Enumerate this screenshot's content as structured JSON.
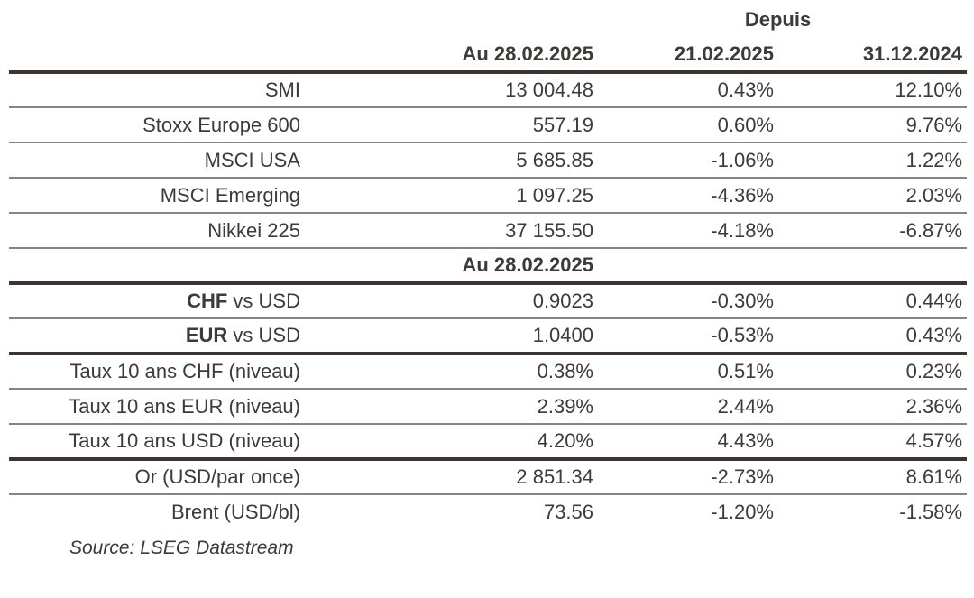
{
  "table": {
    "depuis_label": "Depuis",
    "columns": [
      "Au 28.02.2025",
      "21.02.2025",
      "31.12.2024"
    ],
    "section_header": "Au 28.02.2025",
    "rows": [
      {
        "label_bold": "",
        "label_rest": "SMI",
        "values": [
          "13 004.48",
          "0.43%",
          "12.10%"
        ]
      },
      {
        "label_bold": "",
        "label_rest": "Stoxx Europe 600",
        "values": [
          "557.19",
          "0.60%",
          "9.76%"
        ]
      },
      {
        "label_bold": "",
        "label_rest": "MSCI USA",
        "values": [
          "5 685.85",
          "-1.06%",
          "1.22%"
        ]
      },
      {
        "label_bold": "",
        "label_rest": "MSCI Emerging",
        "values": [
          "1 097.25",
          "-4.36%",
          "2.03%"
        ]
      },
      {
        "label_bold": "",
        "label_rest": "Nikkei 225",
        "values": [
          "37 155.50",
          "-4.18%",
          "-6.87%"
        ]
      },
      {
        "label_bold": "CHF",
        "label_rest": " vs USD",
        "values": [
          "0.9023",
          "-0.30%",
          "0.44%"
        ]
      },
      {
        "label_bold": "EUR",
        "label_rest": " vs USD",
        "values": [
          "1.0400",
          "-0.53%",
          "0.43%"
        ]
      },
      {
        "label_bold": "",
        "label_rest": "Taux 10 ans CHF (niveau)",
        "values": [
          "0.38%",
          "0.51%",
          "0.23%"
        ]
      },
      {
        "label_bold": "",
        "label_rest": "Taux 10 ans EUR (niveau)",
        "values": [
          "2.39%",
          "2.44%",
          "2.36%"
        ]
      },
      {
        "label_bold": "",
        "label_rest": "Taux 10 ans USD (niveau)",
        "values": [
          "4.20%",
          "4.43%",
          "4.57%"
        ]
      },
      {
        "label_bold": "",
        "label_rest": "Or (USD/par once)",
        "values": [
          "2 851.34",
          "-2.73%",
          "8.61%"
        ]
      },
      {
        "label_bold": "",
        "label_rest": "Brent (USD/bl)",
        "values": [
          "73.56",
          "-1.20%",
          "-1.58%"
        ]
      }
    ]
  },
  "source": "Source: LSEG Datastream",
  "colors": {
    "text": "#3d3a38",
    "thick_rule": "#3b3430",
    "thin_rule": "#848484",
    "background": "#ffffff"
  }
}
